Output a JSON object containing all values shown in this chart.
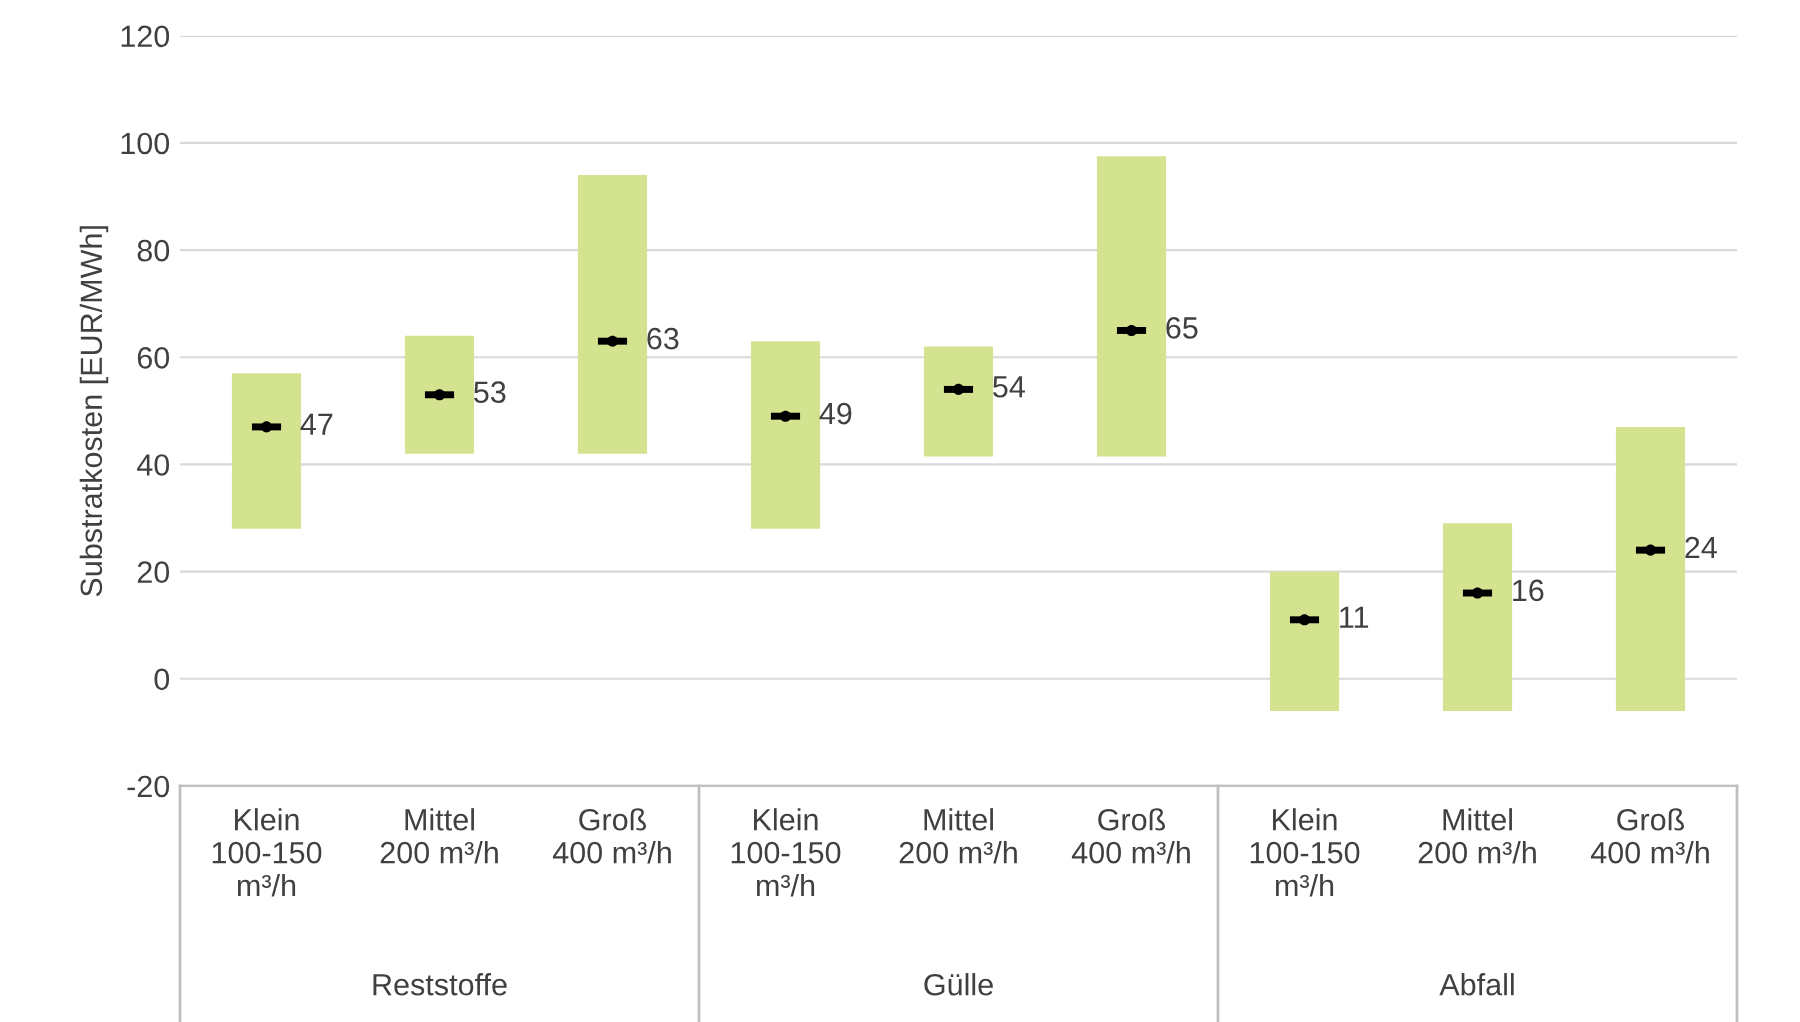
{
  "chart_data": {
    "type": "bar",
    "ylabel": "Substratkosten [EUR/MWh]",
    "categories": [
      "Klein\n100-150\nm³/h",
      "Mittel\n200 m³/h",
      "Groß\n400 m³/h",
      "Klein\n100-150\nm³/h",
      "Mittel\n200 m³/h",
      "Groß\n400 m³/h",
      "Klein\n100-150\nm³/h",
      "Mittel\n200 m³/h",
      "Groß\n400 m³/h"
    ],
    "series": [
      {
        "type": "bar",
        "color": "#d4e38f",
        "base": [
          28,
          42,
          42,
          28,
          41.5,
          41.5,
          -6,
          -6,
          -6
        ],
        "values": [
          29,
          22,
          52,
          35,
          20.5,
          56,
          26,
          35,
          53
        ]
      },
      {
        "type": "scatter",
        "color": "#000000",
        "values": [
          47,
          53,
          63,
          49,
          54,
          65,
          11,
          16,
          24
        ],
        "value_labels": [
          "47",
          "53",
          "63",
          "49",
          "54",
          "65",
          "11",
          "16",
          "24"
        ]
      }
    ],
    "ylim": [
      -20,
      120
    ],
    "yticks": [
      -20,
      0,
      20,
      40,
      60,
      80,
      100,
      120
    ],
    "grid": "y",
    "annotations": [
      "Reststoffe",
      "Gülle",
      "Abfall"
    ]
  }
}
